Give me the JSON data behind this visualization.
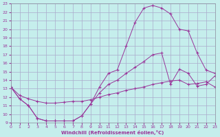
{
  "xlabel": "Windchill (Refroidissement éolien,°C)",
  "background_color": "#c5eeec",
  "grid_color": "#aaaacc",
  "line_color": "#993399",
  "xlim": [
    0,
    23
  ],
  "ylim": [
    9,
    23
  ],
  "xticks": [
    0,
    1,
    2,
    3,
    4,
    5,
    6,
    7,
    8,
    9,
    10,
    11,
    12,
    13,
    14,
    15,
    16,
    17,
    18,
    19,
    20,
    21,
    22,
    23
  ],
  "yticks": [
    9,
    10,
    11,
    12,
    13,
    14,
    15,
    16,
    17,
    18,
    19,
    20,
    21,
    22,
    23
  ],
  "curve1_x": [
    0,
    1,
    2,
    3,
    4,
    5,
    6,
    7,
    8,
    9,
    10,
    11,
    12,
    13,
    14,
    15,
    16,
    17,
    18,
    19,
    20,
    21,
    22,
    23
  ],
  "curve1_y": [
    13.2,
    11.8,
    11.0,
    9.5,
    9.2,
    9.2,
    9.2,
    9.2,
    9.8,
    11.2,
    13.2,
    14.8,
    15.2,
    18.0,
    20.8,
    22.5,
    22.8,
    22.5,
    21.8,
    20.0,
    19.8,
    17.2,
    15.2,
    14.8
  ],
  "curve2_x": [
    0,
    1,
    2,
    3,
    4,
    5,
    6,
    7,
    8,
    9,
    10,
    11,
    12,
    13,
    14,
    15,
    16,
    17,
    18,
    19,
    20,
    21,
    22,
    23
  ],
  "curve2_y": [
    13.2,
    11.8,
    11.0,
    9.5,
    9.2,
    9.2,
    9.2,
    9.2,
    9.8,
    11.2,
    12.5,
    13.5,
    14.0,
    14.8,
    15.5,
    16.2,
    17.0,
    17.2,
    13.5,
    15.3,
    14.8,
    13.3,
    13.5,
    14.5
  ],
  "curve3_x": [
    0,
    1,
    2,
    3,
    4,
    5,
    6,
    7,
    8,
    9,
    10,
    11,
    12,
    13,
    14,
    15,
    16,
    17,
    18,
    19,
    20,
    21,
    22,
    23
  ],
  "curve3_y": [
    13.2,
    12.2,
    11.8,
    11.5,
    11.3,
    11.3,
    11.4,
    11.5,
    11.5,
    11.7,
    12.0,
    12.3,
    12.5,
    12.8,
    13.0,
    13.2,
    13.5,
    13.7,
    13.9,
    14.0,
    13.5,
    13.6,
    13.8,
    13.2
  ]
}
